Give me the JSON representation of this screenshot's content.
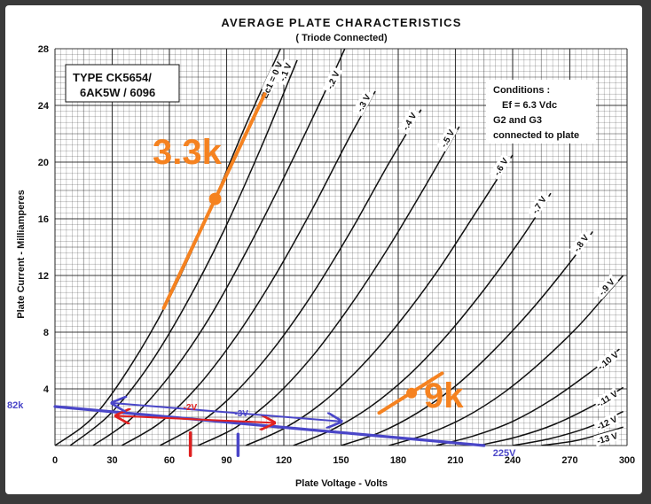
{
  "chart_data": {
    "type": "line",
    "title": "AVERAGE PLATE CHARACTERISTICS",
    "subtitle": "( Triode  Connected)",
    "xlabel": "Plate  Voltage - Volts",
    "ylabel": "Plate  Current  -  Milliamperes",
    "xlim": [
      0,
      300
    ],
    "ylim": [
      0,
      28
    ],
    "x_ticks": [
      0,
      30,
      60,
      90,
      120,
      150,
      180,
      210,
      240,
      270,
      300
    ],
    "y_ticks": [
      4,
      8,
      12,
      16,
      20,
      24,
      28
    ],
    "grid": true,
    "type_label": [
      "TYPE  CK5654/",
      "6AK5W / 6096"
    ],
    "conditions": [
      "Conditions :",
      "Ef = 6.3  Vdc",
      "G2  and  G3",
      "connected  to  plate"
    ],
    "series": [
      {
        "name": "Ec1 = 0 V",
        "points": [
          [
            0,
            0
          ],
          [
            20,
            2.0
          ],
          [
            40,
            5.7
          ],
          [
            60,
            10.4
          ],
          [
            80,
            16.2
          ],
          [
            100,
            22.6
          ],
          [
            120,
            28.5
          ]
        ]
      },
      {
        "name": "-.1 V",
        "points": [
          [
            8,
            0
          ],
          [
            28,
            2.1
          ],
          [
            48,
            5.4
          ],
          [
            68,
            9.8
          ],
          [
            88,
            15.0
          ],
          [
            108,
            21.0
          ],
          [
            127,
            27.2
          ]
        ]
      },
      {
        "name": "-.2 V",
        "points": [
          [
            20,
            0
          ],
          [
            40,
            1.9
          ],
          [
            60,
            4.9
          ],
          [
            80,
            8.8
          ],
          [
            100,
            13.6
          ],
          [
            120,
            18.9
          ],
          [
            140,
            24.5
          ],
          [
            152,
            28.0
          ]
        ]
      },
      {
        "name": "-.3 V",
        "points": [
          [
            35,
            0
          ],
          [
            55,
            1.6
          ],
          [
            75,
            4.2
          ],
          [
            95,
            7.7
          ],
          [
            115,
            11.9
          ],
          [
            135,
            16.7
          ],
          [
            155,
            21.9
          ],
          [
            168,
            25.0
          ]
        ]
      },
      {
        "name": "-.4 V",
        "points": [
          [
            55,
            0
          ],
          [
            75,
            1.5
          ],
          [
            95,
            3.8
          ],
          [
            115,
            6.9
          ],
          [
            135,
            10.7
          ],
          [
            155,
            15.1
          ],
          [
            175,
            19.9
          ],
          [
            192,
            23.7
          ]
        ]
      },
      {
        "name": "-.5 V",
        "points": [
          [
            75,
            0
          ],
          [
            95,
            1.3
          ],
          [
            115,
            3.4
          ],
          [
            135,
            6.3
          ],
          [
            155,
            9.9
          ],
          [
            175,
            14.0
          ],
          [
            195,
            18.5
          ],
          [
            212,
            22.5
          ]
        ]
      },
      {
        "name": "-.6 V",
        "points": [
          [
            100,
            0
          ],
          [
            120,
            1.2
          ],
          [
            140,
            3.0
          ],
          [
            160,
            5.5
          ],
          [
            180,
            8.6
          ],
          [
            200,
            12.2
          ],
          [
            220,
            16.3
          ],
          [
            240,
            20.5
          ]
        ]
      },
      {
        "name": "-.7 V",
        "points": [
          [
            125,
            0
          ],
          [
            145,
            1.1
          ],
          [
            165,
            2.7
          ],
          [
            185,
            4.9
          ],
          [
            205,
            7.7
          ],
          [
            225,
            11.0
          ],
          [
            245,
            14.7
          ],
          [
            260,
            17.8
          ]
        ]
      },
      {
        "name": "-.8 V",
        "points": [
          [
            150,
            0
          ],
          [
            170,
            0.9
          ],
          [
            190,
            2.3
          ],
          [
            210,
            4.2
          ],
          [
            230,
            6.7
          ],
          [
            250,
            9.6
          ],
          [
            270,
            12.9
          ],
          [
            282,
            15.1
          ]
        ]
      },
      {
        "name": "-.9 V",
        "points": [
          [
            175,
            0
          ],
          [
            195,
            0.8
          ],
          [
            215,
            2.0
          ],
          [
            235,
            3.7
          ],
          [
            255,
            5.9
          ],
          [
            275,
            8.5
          ],
          [
            290,
            10.8
          ],
          [
            298,
            12.0
          ]
        ]
      },
      {
        "name": "-.10 V",
        "points": [
          [
            200,
            0
          ],
          [
            220,
            0.7
          ],
          [
            240,
            1.7
          ],
          [
            260,
            3.2
          ],
          [
            280,
            5.1
          ],
          [
            296,
            6.8
          ]
        ]
      },
      {
        "name": "-.11 V",
        "points": [
          [
            222,
            0
          ],
          [
            242,
            0.6
          ],
          [
            262,
            1.5
          ],
          [
            282,
            2.8
          ],
          [
            298,
            4.1
          ]
        ]
      },
      {
        "name": "-12 V",
        "points": [
          [
            240,
            0
          ],
          [
            260,
            0.5
          ],
          [
            280,
            1.3
          ],
          [
            298,
            2.4
          ]
        ]
      },
      {
        "name": "-13 V",
        "points": [
          [
            255,
            0
          ],
          [
            275,
            0.4
          ],
          [
            298,
            1.3
          ]
        ]
      }
    ],
    "annotations": {
      "load_line_3k3": {
        "label": "3.3k",
        "color": "#f58220",
        "line": [
          [
            57,
            9.7
          ],
          [
            110,
            24.8
          ]
        ],
        "point": [
          84,
          17.4
        ]
      },
      "load_line_9k": {
        "label": "9k",
        "color": "#f58220",
        "line": [
          [
            170,
            2.3
          ],
          [
            203,
            5.1
          ]
        ],
        "point": [
          187,
          3.7
        ]
      },
      "load_line_82k": {
        "label": "82k",
        "end_label": "225V",
        "color": "#4a46c8",
        "line": [
          [
            0,
            2.75
          ],
          [
            225,
            0
          ]
        ]
      },
      "bias_2v": {
        "label": "-2V",
        "color": "#e02020",
        "x": 71
      },
      "bias_3v": {
        "label": "-3V",
        "color": "#4a46c8",
        "x": 96
      },
      "red_arrow": {
        "color": "#e02020",
        "from": [
          115,
          1.6
        ],
        "to": [
          32,
          2.1
        ]
      },
      "blue_arrow": {
        "color": "#4a46c8",
        "from": [
          30,
          3.0
        ],
        "to": [
          150,
          1.7
        ]
      }
    }
  }
}
